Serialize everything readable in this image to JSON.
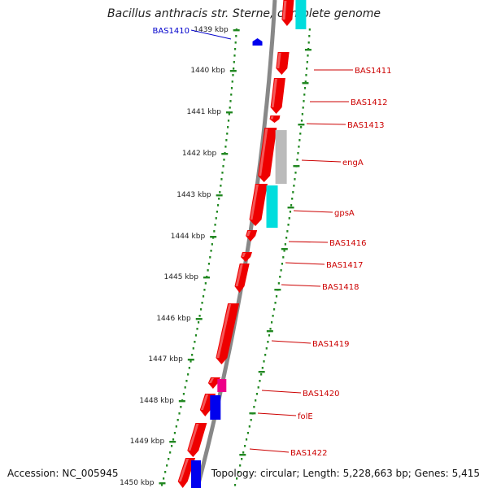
{
  "title": "Bacillus anthracis str. Sterne, complete genome",
  "footer": {
    "accession_label": "Accession:",
    "accession": "NC_005945",
    "topology_label": "Topology:",
    "topology": "circular;",
    "length_label": "Length:",
    "length": "5,228,663 bp;",
    "genes_label": "Genes:",
    "genes": "5,415"
  },
  "scale_ticks": [
    {
      "label": "1439 kbp"
    },
    {
      "label": "1440 kbp"
    },
    {
      "label": "1441 kbp"
    },
    {
      "label": "1442 kbp"
    },
    {
      "label": "1443 kbp"
    },
    {
      "label": "1444 kbp"
    },
    {
      "label": "1445 kbp"
    },
    {
      "label": "1446 kbp"
    },
    {
      "label": "1447 kbp"
    },
    {
      "label": "1448 kbp"
    },
    {
      "label": "1449 kbp"
    },
    {
      "label": "1450 kbp"
    }
  ],
  "gene_labels": [
    {
      "name": "BAS1410",
      "color": "#0000cc"
    },
    {
      "name": "BAS1411",
      "color": "#cc0000"
    },
    {
      "name": "BAS1412",
      "color": "#cc0000"
    },
    {
      "name": "BAS1413",
      "color": "#cc0000"
    },
    {
      "name": "engA",
      "color": "#cc0000"
    },
    {
      "name": "gpsA",
      "color": "#cc0000"
    },
    {
      "name": "BAS1416",
      "color": "#cc0000"
    },
    {
      "name": "BAS1417",
      "color": "#cc0000"
    },
    {
      "name": "BAS1418",
      "color": "#cc0000"
    },
    {
      "name": "BAS1419",
      "color": "#cc0000"
    },
    {
      "name": "BAS1420",
      "color": "#cc0000"
    },
    {
      "name": "folE",
      "color": "#cc0000"
    },
    {
      "name": "BAS1422",
      "color": "#cc0000"
    }
  ],
  "colors": {
    "gene": "#ee0000",
    "backbone": "#888888",
    "tick": "#228822",
    "cyan": "#00dddd",
    "grey": "#bbbbbb",
    "blue": "#0000ee",
    "magenta": "#ee0088"
  }
}
